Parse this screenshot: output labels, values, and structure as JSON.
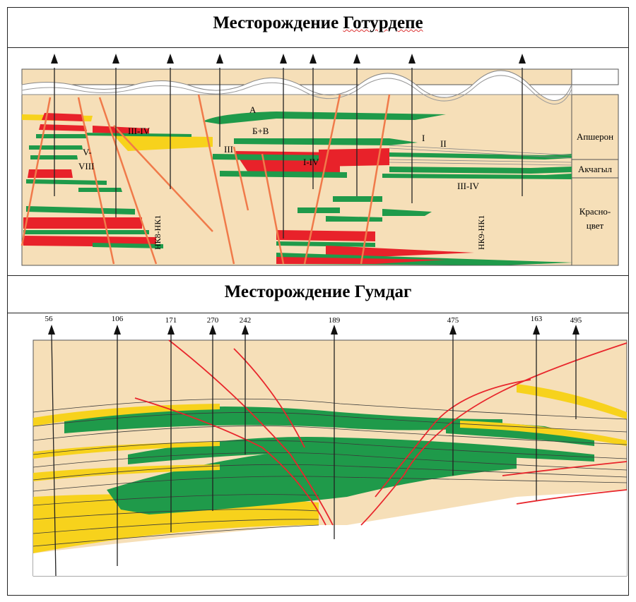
{
  "panel1": {
    "title_part1": "Месторождение ",
    "title_part2": "Готурдепе",
    "stratigraphy": [
      "Апшерон",
      "Акчагыл",
      "Красно-",
      "цвет"
    ],
    "zone_labels": [
      "А",
      "Б+В",
      "III-IV",
      "V-",
      "VIII",
      "III",
      "I-IV",
      "I",
      "II",
      "III-IV"
    ],
    "fault_labels": [
      "НК8-НК1",
      "НК9-НК1"
    ]
  },
  "panel2": {
    "title": "Месторождение Гумдаг",
    "well_numbers": [
      "56",
      "106",
      "171",
      "270",
      "242",
      "189",
      "475",
      "163",
      "495"
    ]
  },
  "colors": {
    "background_sand": "#f6dfb8",
    "green_layer": "#1f9a4a",
    "red_layer": "#e8222a",
    "yellow_layer": "#f7d21c",
    "fault_line": "#f07a4a",
    "fault_line_gumdag": "#e8262c"
  }
}
